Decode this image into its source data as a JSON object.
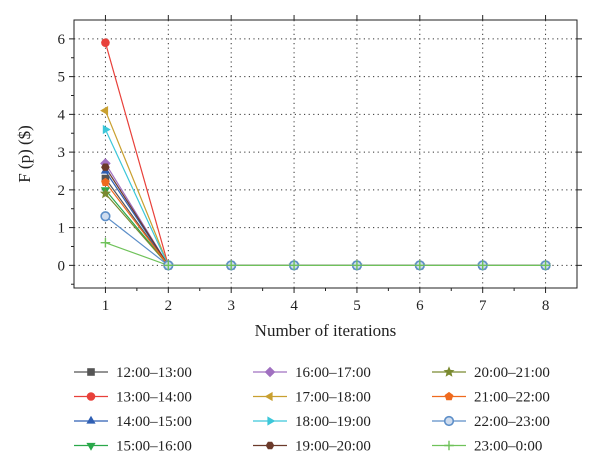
{
  "chart_data": {
    "type": "line",
    "title": "",
    "xlabel": "Number of iterations",
    "ylabel": "F (p) ($)",
    "x": [
      1,
      2,
      3,
      4,
      5,
      6,
      7,
      8
    ],
    "xlim": [
      0.5,
      8.5
    ],
    "ylim": [
      -0.6,
      6.5
    ],
    "xticks": [
      "1",
      "2",
      "3",
      "4",
      "5",
      "6",
      "7",
      "8"
    ],
    "yticks": [
      "0",
      "1",
      "2",
      "3",
      "4",
      "5",
      "6"
    ],
    "grid": "dotted",
    "legend_position": "bottom",
    "series": [
      {
        "name": "12:00–13:00",
        "color": "#555555",
        "marker": "square",
        "values": [
          2.3,
          0,
          0,
          0,
          0,
          0,
          0,
          0
        ]
      },
      {
        "name": "13:00–14:00",
        "color": "#e8403a",
        "marker": "circle",
        "values": [
          5.9,
          0,
          0,
          0,
          0,
          0,
          0,
          0
        ]
      },
      {
        "name": "14:00–15:00",
        "color": "#2f5fb3",
        "marker": "triangle-up",
        "values": [
          2.5,
          0,
          0,
          0,
          0,
          0,
          0,
          0
        ]
      },
      {
        "name": "15:00–16:00",
        "color": "#2aa84a",
        "marker": "triangle-down",
        "values": [
          2.0,
          0,
          0,
          0,
          0,
          0,
          0,
          0
        ]
      },
      {
        "name": "16:00–17:00",
        "color": "#a070c0",
        "marker": "diamond",
        "values": [
          2.7,
          0,
          0,
          0,
          0,
          0,
          0,
          0
        ]
      },
      {
        "name": "17:00–18:00",
        "color": "#c9a030",
        "marker": "triangle-left",
        "values": [
          4.1,
          0,
          0,
          0,
          0,
          0,
          0,
          0
        ]
      },
      {
        "name": "18:00–19:00",
        "color": "#3cc7d9",
        "marker": "triangle-right",
        "values": [
          3.6,
          0,
          0,
          0,
          0,
          0,
          0,
          0
        ]
      },
      {
        "name": "19:00–20:00",
        "color": "#6b3a2a",
        "marker": "hexagon",
        "values": [
          2.6,
          0,
          0,
          0,
          0,
          0,
          0,
          0
        ]
      },
      {
        "name": "20:00–21:00",
        "color": "#7a8a30",
        "marker": "star",
        "values": [
          1.9,
          0,
          0,
          0,
          0,
          0,
          0,
          0
        ]
      },
      {
        "name": "21:00–22:00",
        "color": "#ef6a1e",
        "marker": "pentagon",
        "values": [
          2.2,
          0,
          0,
          0,
          0,
          0,
          0,
          0
        ]
      },
      {
        "name": "22:00–23:00",
        "color": "#5c8ec8",
        "marker": "circle-open",
        "values": [
          1.3,
          0,
          0,
          0,
          0,
          0,
          0,
          0
        ]
      },
      {
        "name": "23:00–0:00",
        "color": "#6fc25a",
        "marker": "plus",
        "values": [
          0.6,
          0,
          0,
          0,
          0,
          0,
          0,
          0
        ]
      }
    ]
  }
}
